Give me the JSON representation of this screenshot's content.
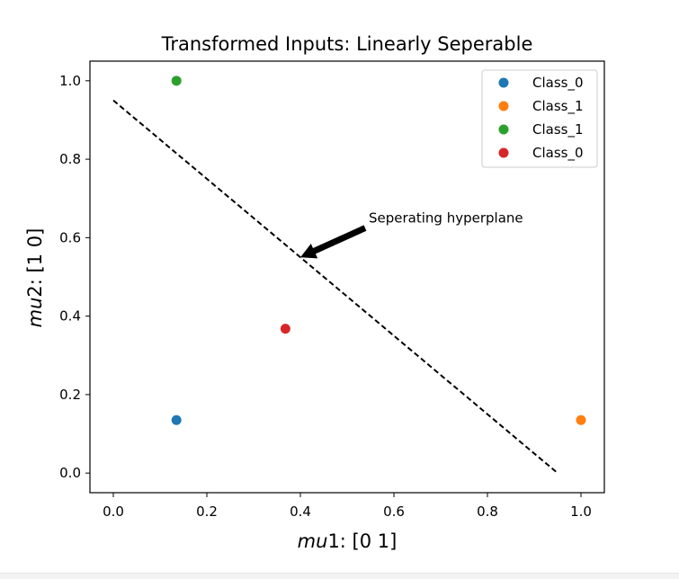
{
  "chart_data": {
    "type": "scatter",
    "title": "Transformed Inputs: Linearly Seperable",
    "xlabel": {
      "italic": "mu",
      "rest": "1: [0 1]"
    },
    "ylabel": {
      "italic": "mu",
      "rest": "2: [1 0]"
    },
    "xlim": [
      -0.05,
      1.05
    ],
    "ylim": [
      -0.05,
      1.05
    ],
    "xticks": [
      0.0,
      0.2,
      0.4,
      0.6,
      0.8,
      1.0
    ],
    "yticks": [
      0.0,
      0.2,
      0.4,
      0.6,
      0.8,
      1.0
    ],
    "xtick_labels": [
      "0.0",
      "0.2",
      "0.4",
      "0.6",
      "0.8",
      "1.0"
    ],
    "ytick_labels": [
      "0.0",
      "0.2",
      "0.4",
      "0.6",
      "0.8",
      "1.0"
    ],
    "series": [
      {
        "name": "Class_0",
        "color": "#1f77b4",
        "points": [
          [
            0.135,
            0.135
          ]
        ]
      },
      {
        "name": "Class_1",
        "color": "#ff7f0e",
        "points": [
          [
            1.0,
            0.135
          ]
        ]
      },
      {
        "name": "Class_1",
        "color": "#2ca02c",
        "points": [
          [
            0.135,
            1.0
          ]
        ]
      },
      {
        "name": "Class_0",
        "color": "#d62728",
        "points": [
          [
            0.368,
            0.368
          ]
        ]
      }
    ],
    "line": {
      "style": "dashed",
      "color": "#000000",
      "points": [
        [
          0.0,
          0.95
        ],
        [
          0.95,
          0.0
        ]
      ]
    },
    "annotation": {
      "text": "Seperating hyperplane",
      "text_at": [
        0.55,
        0.65
      ],
      "arrow_to": [
        0.4,
        0.55
      ]
    },
    "legend": "upper right",
    "grid": false
  }
}
